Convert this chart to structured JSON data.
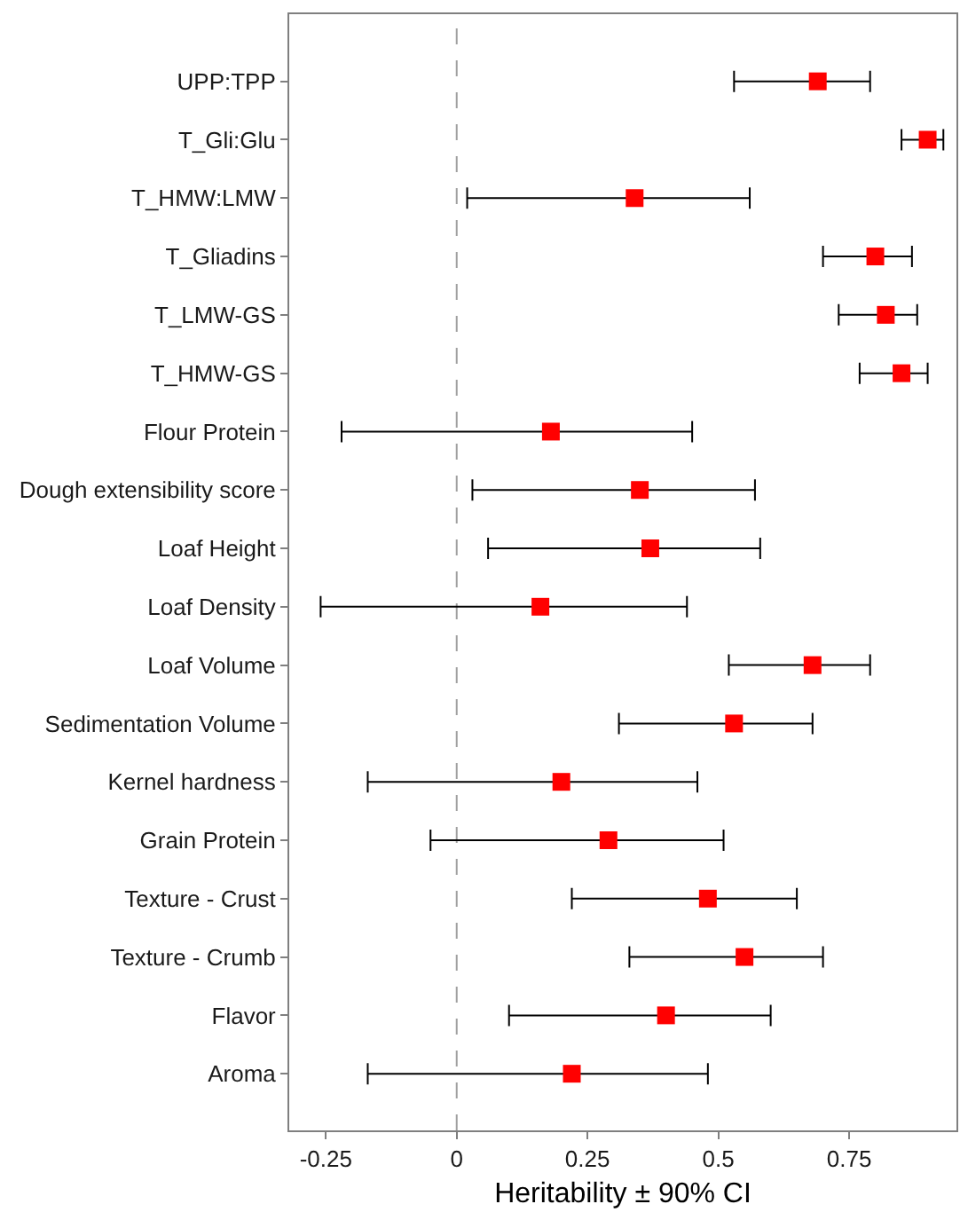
{
  "chart_data": {
    "type": "scatter",
    "orientation": "horizontal",
    "xlabel": "Heritability ± 90% CI",
    "categories": [
      "UPP:TPP",
      "T_Gli:Glu",
      "T_HMW:LMW",
      "T_Gliadins",
      "T_LMW-GS",
      "T_HMW-GS",
      "Flour Protein",
      "Dough extensibility score",
      "Loaf Height",
      "Loaf Density",
      "Loaf Volume",
      "Sedimentation Volume",
      "Kernel hardness",
      "Grain Protein",
      "Texture - Crust",
      "Texture - Crumb",
      "Flavor",
      "Aroma"
    ],
    "series": [
      {
        "color": "#ff0000",
        "values": [
          0.69,
          0.9,
          0.34,
          0.8,
          0.82,
          0.85,
          0.18,
          0.35,
          0.37,
          0.16,
          0.68,
          0.53,
          0.2,
          0.29,
          0.48,
          0.55,
          0.4,
          0.22
        ],
        "errors": [
          [
            0.53,
            0.79
          ],
          [
            0.85,
            0.93
          ],
          [
            0.02,
            0.56
          ],
          [
            0.7,
            0.87
          ],
          [
            0.73,
            0.88
          ],
          [
            0.77,
            0.9
          ],
          [
            -0.22,
            0.45
          ],
          [
            0.03,
            0.57
          ],
          [
            0.06,
            0.58
          ],
          [
            -0.26,
            0.44
          ],
          [
            0.52,
            0.79
          ],
          [
            0.31,
            0.68
          ],
          [
            -0.17,
            0.46
          ],
          [
            -0.05,
            0.51
          ],
          [
            0.22,
            0.65
          ],
          [
            0.33,
            0.7
          ],
          [
            0.1,
            0.6
          ],
          [
            -0.17,
            0.48
          ]
        ]
      }
    ],
    "xlim": [
      -0.32,
      0.955
    ],
    "xticks": [
      -0.25,
      0,
      0.25,
      0.5,
      0.75
    ],
    "ref_lines": [
      {
        "axis": "x",
        "value": 0,
        "color": "#a0a0a0",
        "line_style": "dashed"
      }
    ],
    "marker": "square",
    "grid": false
  }
}
